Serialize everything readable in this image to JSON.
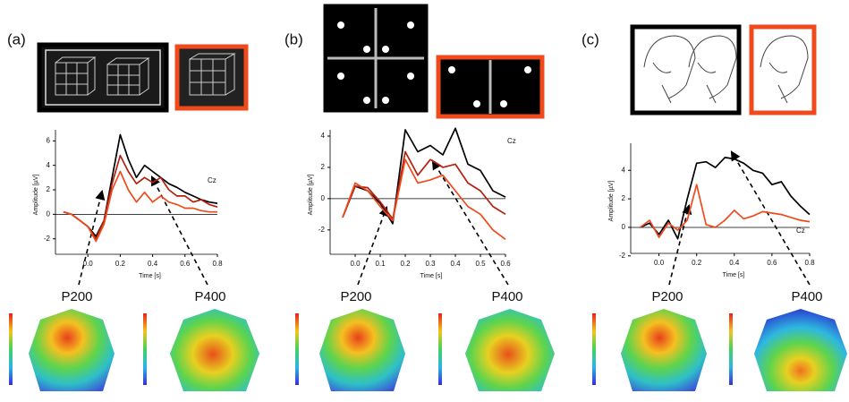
{
  "chart_data": [
    {
      "type": "line",
      "panel_label": "(a)",
      "annotation": "Cz",
      "xlabel": "Time [s]",
      "ylabel": "Amplitude [µV]",
      "peak_labels": [
        "P200",
        "P400"
      ],
      "xlim": [
        -0.2,
        0.8
      ],
      "ylim": [
        -3.7,
        6.9
      ],
      "xticks": [
        {
          "value": 0,
          "label": "0.0"
        },
        0.2,
        0.4,
        0.6,
        0.8
      ],
      "yticks": [
        -2,
        0,
        2,
        4,
        6
      ],
      "x": [
        -0.15,
        -0.1,
        -0.05,
        0,
        0.05,
        0.1,
        0.15,
        0.2,
        0.25,
        0.3,
        0.35,
        0.4,
        0.45,
        0.5,
        0.55,
        0.6,
        0.65,
        0.7,
        0.75,
        0.8
      ],
      "series": [
        {
          "color": "#000000",
          "values": [
            0.2,
            0,
            -0.5,
            -1,
            -1.8,
            -0.5,
            3,
            6.5,
            4.5,
            3,
            4,
            3.5,
            3,
            2.5,
            2.2,
            1.8,
            1.5,
            1.2,
            1,
            0.9
          ]
        },
        {
          "color": "#b3200e",
          "values": [
            0.2,
            0,
            -0.5,
            -1,
            -2,
            -0.5,
            2.5,
            4.8,
            3.5,
            2.5,
            3,
            2.6,
            3,
            2,
            1.5,
            1.5,
            1,
            1.2,
            0.8,
            0.6
          ]
        },
        {
          "color": "#f04a1c",
          "values": [
            0.2,
            0,
            -0.5,
            -1,
            -2.2,
            -0.8,
            2,
            3.5,
            2,
            1,
            1.8,
            1,
            1.5,
            1,
            0.8,
            0.5,
            0.5,
            0.3,
            0.2,
            0.2
          ]
        }
      ]
    },
    {
      "type": "line",
      "panel_label": "(b)",
      "annotation": "Cz",
      "xlabel": "Time [s]",
      "ylabel": "Amplitude [µV]",
      "peak_labels": [
        "P200",
        "P400"
      ],
      "xlim": [
        -0.1,
        0.6
      ],
      "ylim": [
        -3.9,
        4.4
      ],
      "xticks": [
        {
          "value": 0,
          "label": "0.0"
        },
        0.1,
        0.2,
        0.3,
        0.4,
        0.5,
        0.6
      ],
      "yticks": [
        -2,
        0,
        2,
        4
      ],
      "x": [
        -0.05,
        0,
        0.05,
        0.1,
        0.15,
        0.2,
        0.25,
        0.3,
        0.35,
        0.4,
        0.45,
        0.5,
        0.55,
        0.6
      ],
      "series": [
        {
          "color": "#000000",
          "values": [
            -1.2,
            0.8,
            0.5,
            -0.3,
            -1.6,
            4.4,
            3,
            3.4,
            2.8,
            4.5,
            2.2,
            1.8,
            0.5,
            0.1
          ]
        },
        {
          "color": "#b3200e",
          "values": [
            -1.2,
            0.8,
            0.7,
            -0.2,
            -1.3,
            3,
            1.5,
            2.5,
            2,
            2.2,
            1,
            0.5,
            -0.5,
            -1
          ]
        },
        {
          "color": "#f04a1c",
          "values": [
            -1.2,
            1,
            0.5,
            -0.5,
            -1.4,
            2.5,
            1,
            1.2,
            1.5,
            0.5,
            -0.5,
            -1,
            -2,
            -2.6
          ]
        }
      ]
    },
    {
      "type": "line",
      "panel_label": "(c)",
      "annotation": "Cz",
      "xlabel": "Time [s]",
      "ylabel": "Amplitude [µV]",
      "peak_labels": [
        "P200",
        "P400"
      ],
      "xlim": [
        -0.15,
        0.8
      ],
      "ylim": [
        -2.2,
        5.9
      ],
      "xticks": [
        {
          "value": 0,
          "label": "0.0"
        },
        0.2,
        0.4,
        0.6,
        0.8
      ],
      "yticks": [
        -2,
        0,
        2,
        4
      ],
      "x": [
        -0.1,
        -0.05,
        0,
        0.05,
        0.1,
        0.15,
        0.2,
        0.25,
        0.3,
        0.35,
        0.4,
        0.45,
        0.5,
        0.55,
        0.6,
        0.65,
        0.7,
        0.75,
        0.8
      ],
      "series": [
        {
          "color": "#000000",
          "values": [
            0,
            0.3,
            -0.5,
            0.5,
            -0.8,
            2,
            4.5,
            4.6,
            4.2,
            4.9,
            4.8,
            4.5,
            4,
            3.8,
            3,
            3.2,
            2.2,
            1.5,
            0.9
          ]
        },
        {
          "color": "#f04a1c",
          "values": [
            0,
            0.5,
            -0.7,
            0.3,
            -0.2,
            0.5,
            3,
            0.2,
            0,
            0.5,
            1.2,
            0.6,
            0.8,
            1.1,
            1,
            0.9,
            0.7,
            0.5,
            0.4
          ]
        }
      ]
    }
  ]
}
